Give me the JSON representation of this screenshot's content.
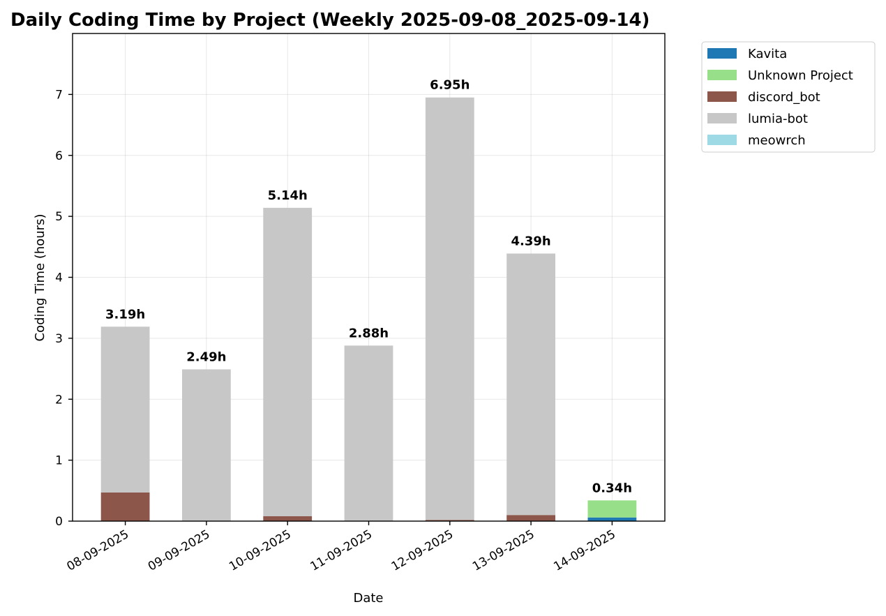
{
  "chart_data": {
    "type": "bar",
    "stacked": true,
    "title": "Daily Coding Time by Project (Weekly 2025-09-08_2025-09-14)",
    "xlabel": "Date",
    "ylabel": "Coding Time (hours)",
    "ylim": [
      0,
      8
    ],
    "yticks": [
      0,
      1,
      2,
      3,
      4,
      5,
      6,
      7
    ],
    "grid": true,
    "legend_placement": "outside-top-right",
    "categories": [
      "08-09-2025",
      "09-09-2025",
      "10-09-2025",
      "11-09-2025",
      "12-09-2025",
      "13-09-2025",
      "14-09-2025"
    ],
    "series": [
      {
        "name": "Kavita",
        "color": "#1f77b4",
        "values": [
          0,
          0,
          0,
          0,
          0,
          0,
          0.06
        ]
      },
      {
        "name": "Unknown Project",
        "color": "#98df8a",
        "values": [
          0,
          0,
          0,
          0,
          0,
          0,
          0.28
        ]
      },
      {
        "name": "discord_bot",
        "color": "#8c564b",
        "values": [
          0.47,
          0,
          0.08,
          0,
          0.02,
          0.1,
          0
        ]
      },
      {
        "name": "lumia-bot",
        "color": "#c7c7c7",
        "values": [
          2.72,
          2.49,
          5.06,
          2.88,
          6.93,
          4.29,
          0
        ]
      },
      {
        "name": "meowrch",
        "color": "#9edae5",
        "values": [
          0,
          0,
          0,
          0,
          0,
          0,
          0
        ]
      }
    ],
    "totals": [
      "3.19h",
      "2.49h",
      "5.14h",
      "2.88h",
      "6.95h",
      "4.39h",
      "0.34h"
    ],
    "total_values": [
      3.19,
      2.49,
      5.14,
      2.88,
      6.95,
      4.39,
      0.34
    ]
  }
}
